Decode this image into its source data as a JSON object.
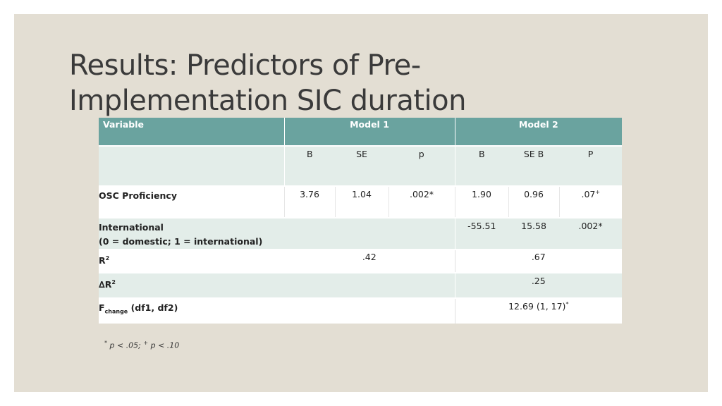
{
  "title": {
    "line1": "Results: Predictors of Pre-",
    "line2": "Implementation SIC duration"
  },
  "table": {
    "header": {
      "variable": "Variable",
      "model1": "Model 1",
      "model2": "Model 2"
    },
    "subheader": {
      "m1_b": "B",
      "m1_se": "SE",
      "m1_p": "p",
      "m2_b": "B",
      "m2_se": "SE B",
      "m2_p": "P"
    },
    "osc": {
      "label": "OSC Proficiency",
      "m1_b": "3.76",
      "m1_se": "1.04",
      "m1_p": ".002*",
      "m2_b": "1.90",
      "m2_se": "0.96",
      "m2_p": ".07",
      "m2_p_sup": "+"
    },
    "international": {
      "label": "International",
      "sublabel": "(0 = domestic; 1 = international)",
      "m2_b": "-55.51",
      "m2_se": "15.58",
      "m2_p": ".002*"
    },
    "r2": {
      "label": "R",
      "label_sup": "2",
      "m1": ".42",
      "m2": ".67"
    },
    "delta_r2": {
      "label": "∆R",
      "label_sup": "2",
      "m2": ".25"
    },
    "fchange": {
      "label": "F",
      "label_sub": "change",
      "label_rest": " (df1, df2)",
      "m2": "12.69 (1, 17)",
      "m2_sup": "*"
    }
  },
  "footnote": {
    "star": "*",
    "part1": " p < .05; ",
    "plus": "+",
    "part2": " p < .10"
  }
}
